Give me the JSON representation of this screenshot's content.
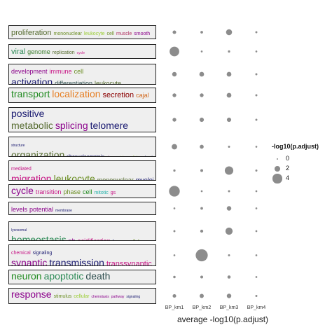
{
  "chart_data": {
    "type": "scatter",
    "title": "",
    "xlabel": "average -log10(p.adjust)",
    "ylabel": "",
    "categories": [
      "BP_km1",
      "BP_km2",
      "BP_km3",
      "BP_km4"
    ],
    "legend": {
      "title": "-log10(p.adjust)",
      "breaks": [
        0,
        2,
        4
      ],
      "position": "right"
    },
    "dot_color": "#8c8c8c",
    "rows": [
      {
        "words": [
          [
            {
              "t": "proliferation",
              "c": "#556b2f",
              "s": 3
            },
            {
              "t": "mononuclear",
              "c": "#6b8e23",
              "s": 1
            },
            {
              "t": "leukocyte",
              "c": "#9acd32",
              "s": 1
            },
            {
              "t": "cell",
              "c": "#6b8e23",
              "s": 1
            },
            {
              "t": "muscle",
              "c": "#b03060",
              "s": 1
            },
            {
              "t": "smooth",
              "c": "#8b008b",
              "s": 1
            }
          ]
        ],
        "values": [
          1.0,
          0.5,
          2.3,
          0.2
        ]
      },
      {
        "words": [
          [
            {
              "t": "viral",
              "c": "#2e8b57",
              "s": 3
            },
            {
              "t": "genome",
              "c": "#3a7d2c",
              "s": 2
            },
            {
              "t": "replication",
              "c": "#556b2f",
              "s": 1
            },
            {
              "t": "cycle",
              "c": "#c71585",
              "s": 0
            }
          ]
        ],
        "values": [
          4.2,
          0.1,
          0.3,
          0.1
        ]
      },
      {
        "words": [
          [
            {
              "t": "development",
              "c": "#8b008b",
              "s": 2
            },
            {
              "t": "immune",
              "c": "#c71585",
              "s": 2
            },
            {
              "t": "cell",
              "c": "#6b8e23",
              "s": 2
            }
          ],
          [
            {
              "t": "activation",
              "c": "#191970",
              "s": 4
            },
            {
              "t": "differentiation",
              "c": "#2f4f4f",
              "s": 2
            },
            {
              "t": "leukocyte",
              "c": "#556b2f",
              "s": 2
            }
          ]
        ],
        "values": [
          1.5,
          1.6,
          1.6,
          0.2
        ]
      },
      {
        "words": [
          [
            {
              "t": "transport",
              "c": "#228b22",
              "s": 4
            },
            {
              "t": "localization",
              "c": "#e67e22",
              "s": 4
            },
            {
              "t": "secretion",
              "c": "#8b0000",
              "s": 3
            },
            {
              "t": "cajal",
              "c": "#d2691e",
              "s": 2
            }
          ]
        ],
        "values": [
          1.1,
          1.1,
          1.6,
          0.2
        ]
      },
      {
        "words": [
          [
            {
              "t": "positive",
              "c": "#191970",
              "s": 4
            }
          ],
          [
            {
              "t": "metabolic",
              "c": "#556b2f",
              "s": 4
            },
            {
              "t": "splicing",
              "c": "#8b008b",
              "s": 4
            },
            {
              "t": "telomere",
              "c": "#191970",
              "s": 4
            }
          ]
        ],
        "values": [
          1.1,
          1.4,
          1.4,
          0.2
        ]
      },
      {
        "words": [
          [
            {
              "t": "structure",
              "c": "#191970",
              "s": 0
            }
          ],
          [
            {
              "t": "organization",
              "c": "#556b2f",
              "s": 4
            },
            {
              "t": "ribonucleoprotein",
              "c": "#191970",
              "s": 1
            },
            {
              "t": "change",
              "c": "#8b008b",
              "s": 0
            },
            {
              "t": "intermediate",
              "c": "#9acd32",
              "s": 0
            },
            {
              "t": "subunit",
              "c": "#191970",
              "s": 0
            }
          ]
        ],
        "values": [
          2.0,
          1.2,
          0.2,
          0.1
        ]
      },
      {
        "words": [
          [
            {
              "t": "mediated",
              "c": "#c71585",
              "s": 1
            }
          ],
          [
            {
              "t": "migration",
              "c": "#c71585",
              "s": 4
            },
            {
              "t": "leukocyte",
              "c": "#6b8e23",
              "s": 4
            },
            {
              "t": "mononuclear",
              "c": "#556b2f",
              "s": 2
            },
            {
              "t": "myeloid",
              "c": "#191970",
              "s": 2
            }
          ]
        ],
        "values": [
          0.3,
          0.6,
          3.6,
          0.2
        ]
      },
      {
        "words": [
          [
            {
              "t": "cycle",
              "c": "#8b008b",
              "s": 4
            },
            {
              "t": "transition",
              "c": "#c71585",
              "s": 2
            },
            {
              "t": "phase",
              "c": "#6b8e23",
              "s": 2
            },
            {
              "t": "cell",
              "c": "#228b22",
              "s": 2
            },
            {
              "t": "mitotic",
              "c": "#20b2aa",
              "s": 1
            },
            {
              "t": "gs",
              "c": "#c71585",
              "s": 1
            }
          ]
        ],
        "values": [
          4.8,
          0.1,
          0.2,
          0.1
        ]
      },
      {
        "words": [
          [
            {
              "t": "levels",
              "c": "#8b008b",
              "s": 2
            },
            {
              "t": "potential",
              "c": "#8b008b",
              "s": 2
            },
            {
              "t": "membrane",
              "c": "#191970",
              "s": 0
            }
          ]
        ],
        "values": [
          0.1,
          0.5,
          1.5,
          0.1
        ]
      },
      {
        "words": [
          [
            {
              "t": "lysosomal",
              "c": "#191970",
              "s": 0
            }
          ],
          [
            {
              "t": "homeostasis",
              "c": "#2e8b57",
              "s": 4
            },
            {
              "t": "ph",
              "c": "#8b008b",
              "s": 2
            },
            {
              "t": "acidification",
              "c": "#c71585",
              "s": 2
            },
            {
              "t": "lumen",
              "c": "#191970",
              "s": 1
            },
            {
              "t": "cellular",
              "c": "#6b8e23",
              "s": 1
            }
          ]
        ],
        "values": [
          0.2,
          0.7,
          2.9,
          0.1
        ]
      },
      {
        "words": [
          [
            {
              "t": "chemical",
              "c": "#c71585",
              "s": 1
            },
            {
              "t": "signaling",
              "c": "#191970",
              "s": 1
            }
          ],
          [
            {
              "t": "synaptic",
              "c": "#8b008b",
              "s": 4
            },
            {
              "t": "transmission",
              "c": "#191970",
              "s": 4
            },
            {
              "t": "transsynaptic",
              "c": "#c71585",
              "s": 3
            }
          ]
        ],
        "values": [
          0.1,
          5.5,
          0.2,
          0.1
        ]
      },
      {
        "words": [
          [
            {
              "t": "neuron",
              "c": "#228b22",
              "s": 4
            },
            {
              "t": "apoptotic",
              "c": "#2e8b57",
              "s": 4
            },
            {
              "t": "death",
              "c": "#2f4f4f",
              "s": 4
            }
          ]
        ],
        "values": [
          0.4,
          0.6,
          0.8,
          0.1
        ]
      },
      {
        "words": [
          [
            {
              "t": "response",
              "c": "#8b008b",
              "s": 4
            },
            {
              "t": "stimulus",
              "c": "#6b8e23",
              "s": 1
            },
            {
              "t": "cellular",
              "c": "#9acd32",
              "s": 1
            },
            {
              "t": "chemotaxis",
              "c": "#8b008b",
              "s": 0
            },
            {
              "t": "pathway",
              "c": "#8b008b",
              "s": 0
            },
            {
              "t": "signaling",
              "c": "#191970",
              "s": 0
            }
          ]
        ],
        "values": [
          1.0,
          1.3,
          1.5,
          0.2
        ]
      }
    ]
  }
}
